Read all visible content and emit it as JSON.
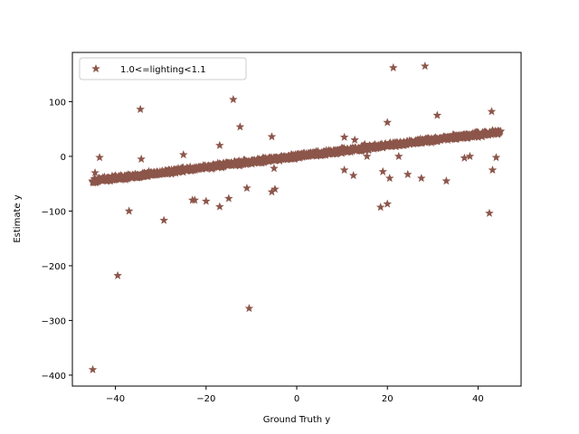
{
  "chart_data": {
    "type": "scatter",
    "xlabel": "Ground Truth y",
    "ylabel": "Estimate y",
    "xlim": [
      -49.5,
      49.5
    ],
    "ylim": [
      -420,
      190
    ],
    "xticks": [
      -40,
      -20,
      0,
      20,
      40
    ],
    "yticks": [
      -400,
      -300,
      -200,
      -100,
      0,
      100
    ],
    "tick_labels_x": [
      "−40",
      "−20",
      "0",
      "20",
      "40"
    ],
    "tick_labels_y": [
      "−400",
      "−300",
      "−200",
      "−100",
      "0",
      "100"
    ],
    "legend_placement": "top-left",
    "grid": false,
    "marker": "star",
    "series": [
      {
        "name": "1.0<=lighting<1.1",
        "color": "#8c564b",
        "trend": {
          "x_range": [
            -45,
            45
          ],
          "slope": 1.0,
          "intercept": 0,
          "note": "dense band of points along y = x"
        },
        "outliers": [
          [
            -45,
            -390
          ],
          [
            -44.5,
            -30
          ],
          [
            -43.5,
            -2
          ],
          [
            -39.5,
            -218
          ],
          [
            -37,
            -100
          ],
          [
            -34.5,
            86
          ],
          [
            -34.3,
            -5
          ],
          [
            -29.3,
            -117
          ],
          [
            -25,
            3
          ],
          [
            -23,
            -80
          ],
          [
            -22.5,
            -80
          ],
          [
            -20,
            -82
          ],
          [
            -17,
            20
          ],
          [
            -17,
            -92
          ],
          [
            -15,
            -77
          ],
          [
            -14,
            104
          ],
          [
            -12.5,
            54
          ],
          [
            -11,
            -58
          ],
          [
            -10.5,
            -278
          ],
          [
            -5.5,
            36
          ],
          [
            -5.5,
            -65
          ],
          [
            -5,
            -22
          ],
          [
            -4.8,
            -60
          ],
          [
            10.5,
            35
          ],
          [
            10.5,
            -25
          ],
          [
            12.5,
            -35
          ],
          [
            12.8,
            30
          ],
          [
            15,
            22
          ],
          [
            15.5,
            0
          ],
          [
            18.5,
            -93
          ],
          [
            19,
            -28
          ],
          [
            20,
            62
          ],
          [
            20,
            -87
          ],
          [
            20.5,
            -40
          ],
          [
            21.3,
            162
          ],
          [
            22.5,
            0
          ],
          [
            24.5,
            -33
          ],
          [
            27.5,
            -40
          ],
          [
            28.3,
            165
          ],
          [
            31,
            75
          ],
          [
            33,
            -45
          ],
          [
            37,
            -3
          ],
          [
            38.2,
            0
          ],
          [
            42.5,
            -104
          ],
          [
            43,
            82
          ],
          [
            43.2,
            -25
          ],
          [
            44,
            -2
          ]
        ]
      }
    ]
  }
}
